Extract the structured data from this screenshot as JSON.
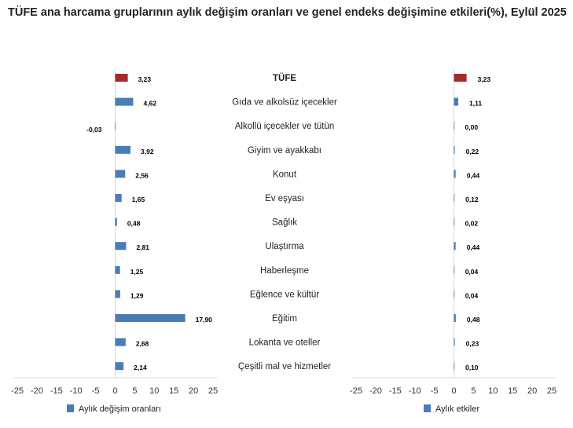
{
  "title": "TÜFE ana harcama gruplarının aylık değişim oranları ve genel endeks değişimine etkileri(%), Eylül 2025",
  "chart_data": [
    {
      "type": "bar",
      "orientation": "horizontal",
      "categories": [
        "TÜFE",
        "Gıda ve alkolsüz içecekler",
        "Alkollü içecekler ve tütün",
        "Giyim ve ayakkabı",
        "Konut",
        "Ev eşyası",
        "Sağlık",
        "Ulaştırma",
        "Haberleşme",
        "Eğlence ve kültür",
        "Eğitim",
        "Lokanta ve oteller",
        "Çeşitli mal ve hizmetler"
      ],
      "series": [
        {
          "name": "Aylık değişim oranları",
          "values": [
            3.23,
            4.62,
            -0.03,
            3.92,
            2.56,
            1.65,
            0.48,
            2.81,
            1.25,
            1.29,
            17.9,
            2.68,
            2.14
          ]
        }
      ],
      "labels": [
        "3,23",
        "4,62",
        "-0,03",
        "3,92",
        "2,56",
        "1,65",
        "0,48",
        "2,81",
        "1,25",
        "1,29",
        "17,90",
        "2,68",
        "2,14"
      ],
      "xlim": [
        -25,
        25
      ],
      "ticks": [
        "-25",
        "-20",
        "-15",
        "-10",
        "-5",
        "0",
        "5",
        "10",
        "15",
        "20",
        "25"
      ],
      "legend": "bottom",
      "colors": {
        "bar": "#4a7db5",
        "highlight": "#a52a2a"
      }
    },
    {
      "type": "bar",
      "orientation": "horizontal",
      "series": [
        {
          "name": "Aylık etkiler",
          "values": [
            3.23,
            1.11,
            0.0,
            0.22,
            0.44,
            0.12,
            0.02,
            0.44,
            0.04,
            0.04,
            0.48,
            0.23,
            0.1
          ]
        }
      ],
      "labels": [
        "3,23",
        "1,11",
        "0,00",
        "0,22",
        "0,44",
        "0,12",
        "0,02",
        "0,44",
        "0,04",
        "0,04",
        "0,48",
        "0,23",
        "0,10"
      ],
      "xlim": [
        -25,
        25
      ],
      "ticks": [
        "-25",
        "-20",
        "-15",
        "-10",
        "-5",
        "0",
        "5",
        "10",
        "15",
        "20",
        "25"
      ],
      "legend": "bottom",
      "colors": {
        "bar": "#4a7db5",
        "highlight": "#a52a2a"
      }
    }
  ]
}
